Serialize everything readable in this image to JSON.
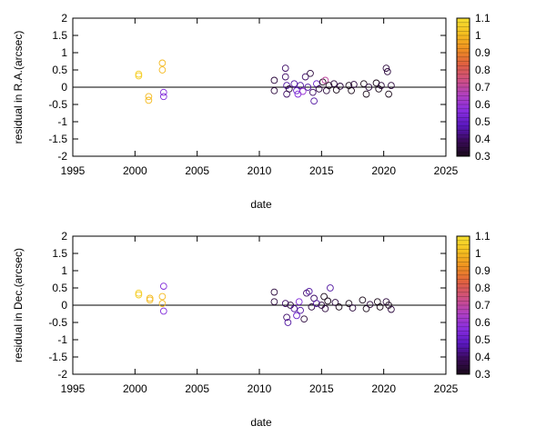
{
  "colorbar": {
    "min": 0.3,
    "max": 1.1,
    "ticks": [
      "1.1",
      "1",
      "0.9",
      "0.8",
      "0.7",
      "0.6",
      "0.5",
      "0.4",
      "0.3"
    ],
    "stops": [
      "#1a0a1a",
      "#3a0a5a",
      "#5a18c0",
      "#8a2ee0",
      "#b040c0",
      "#d05080",
      "#e06040",
      "#f09020",
      "#f5c020",
      "#f5e030"
    ]
  },
  "chart_data": [
    {
      "type": "scatter",
      "title": "",
      "xlabel": "date",
      "ylabel": "residual in R.A.(arcsec)",
      "xlim": [
        1995,
        2025
      ],
      "ylim": [
        -2,
        2
      ],
      "xticks": [
        "1995",
        "2000",
        "2005",
        "2010",
        "2015",
        "2020",
        "2025"
      ],
      "yticks": [
        "2",
        "1.5",
        "1",
        "0.5",
        "0",
        "-0.5",
        "-1",
        "-1.5",
        "-2"
      ],
      "zero_line": true,
      "points": [
        [
          2000.3,
          0.38,
          1.05
        ],
        [
          2000.3,
          0.33,
          1.05
        ],
        [
          2001.1,
          -0.27,
          1.0
        ],
        [
          2001.1,
          -0.38,
          1.0
        ],
        [
          2002.2,
          0.7,
          1.0
        ],
        [
          2002.2,
          0.5,
          1.0
        ],
        [
          2002.3,
          -0.15,
          0.55
        ],
        [
          2002.3,
          -0.27,
          0.55
        ],
        [
          2011.2,
          0.2,
          0.35
        ],
        [
          2011.2,
          -0.1,
          0.35
        ],
        [
          2012.1,
          0.55,
          0.4
        ],
        [
          2012.1,
          0.3,
          0.4
        ],
        [
          2012.2,
          0.05,
          0.45
        ],
        [
          2012.2,
          -0.2,
          0.4
        ],
        [
          2012.4,
          -0.05,
          0.35
        ],
        [
          2012.8,
          0.1,
          0.45
        ],
        [
          2013.0,
          -0.1,
          0.5
        ],
        [
          2013.1,
          -0.2,
          0.55
        ],
        [
          2013.3,
          0.05,
          0.45
        ],
        [
          2013.5,
          -0.12,
          0.6
        ],
        [
          2013.7,
          0.3,
          0.4
        ],
        [
          2013.9,
          0.0,
          0.45
        ],
        [
          2014.1,
          0.4,
          0.35
        ],
        [
          2014.3,
          -0.15,
          0.4
        ],
        [
          2014.4,
          -0.4,
          0.45
        ],
        [
          2014.6,
          0.1,
          0.5
        ],
        [
          2014.8,
          -0.05,
          0.35
        ],
        [
          2015.1,
          0.15,
          0.3
        ],
        [
          2015.3,
          0.2,
          0.7
        ],
        [
          2015.4,
          -0.1,
          0.35
        ],
        [
          2015.6,
          0.05,
          0.3
        ],
        [
          2016.0,
          0.1,
          0.35
        ],
        [
          2016.2,
          -0.08,
          0.3
        ],
        [
          2016.5,
          0.03,
          0.35
        ],
        [
          2017.2,
          0.05,
          0.3
        ],
        [
          2017.4,
          -0.1,
          0.3
        ],
        [
          2017.6,
          0.08,
          0.35
        ],
        [
          2018.4,
          0.1,
          0.3
        ],
        [
          2018.6,
          -0.2,
          0.3
        ],
        [
          2018.8,
          0.0,
          0.35
        ],
        [
          2019.4,
          0.12,
          0.3
        ],
        [
          2019.6,
          -0.05,
          0.3
        ],
        [
          2019.8,
          0.05,
          0.35
        ],
        [
          2020.2,
          0.55,
          0.35
        ],
        [
          2020.3,
          0.45,
          0.35
        ],
        [
          2020.4,
          -0.2,
          0.3
        ],
        [
          2020.6,
          0.05,
          0.35
        ]
      ]
    },
    {
      "type": "scatter",
      "title": "",
      "xlabel": "date",
      "ylabel": "residual in Dec.(arcsec)",
      "xlim": [
        1995,
        2025
      ],
      "ylim": [
        -2,
        2
      ],
      "xticks": [
        "1995",
        "2000",
        "2005",
        "2010",
        "2015",
        "2020",
        "2025"
      ],
      "yticks": [
        "2",
        "1.5",
        "1",
        "0.5",
        "0",
        "-0.5",
        "-1",
        "-1.5",
        "-2"
      ],
      "zero_line": true,
      "points": [
        [
          2000.3,
          0.35,
          1.05
        ],
        [
          2000.3,
          0.3,
          1.05
        ],
        [
          2001.2,
          0.2,
          1.0
        ],
        [
          2001.2,
          0.15,
          1.0
        ],
        [
          2002.2,
          0.25,
          1.0
        ],
        [
          2002.2,
          0.05,
          1.0
        ],
        [
          2002.3,
          0.55,
          0.55
        ],
        [
          2002.3,
          -0.17,
          0.55
        ],
        [
          2011.2,
          0.38,
          0.35
        ],
        [
          2011.2,
          0.1,
          0.35
        ],
        [
          2012.1,
          0.05,
          0.4
        ],
        [
          2012.2,
          -0.35,
          0.4
        ],
        [
          2012.3,
          -0.5,
          0.45
        ],
        [
          2012.5,
          0.0,
          0.35
        ],
        [
          2012.8,
          -0.1,
          0.45
        ],
        [
          2013.0,
          -0.3,
          0.5
        ],
        [
          2013.2,
          0.1,
          0.55
        ],
        [
          2013.3,
          -0.15,
          0.45
        ],
        [
          2013.6,
          -0.4,
          0.35
        ],
        [
          2013.8,
          0.35,
          0.4
        ],
        [
          2014.0,
          0.4,
          0.45
        ],
        [
          2014.2,
          -0.05,
          0.35
        ],
        [
          2014.4,
          0.2,
          0.4
        ],
        [
          2014.6,
          0.05,
          0.45
        ],
        [
          2015.0,
          0.0,
          0.35
        ],
        [
          2015.2,
          0.25,
          0.3
        ],
        [
          2015.3,
          -0.1,
          0.35
        ],
        [
          2015.5,
          0.12,
          0.3
        ],
        [
          2015.7,
          0.5,
          0.45
        ],
        [
          2016.1,
          0.08,
          0.35
        ],
        [
          2016.4,
          -0.05,
          0.3
        ],
        [
          2017.2,
          0.05,
          0.3
        ],
        [
          2017.5,
          -0.08,
          0.35
        ],
        [
          2018.3,
          0.15,
          0.3
        ],
        [
          2018.6,
          -0.1,
          0.3
        ],
        [
          2018.9,
          0.02,
          0.35
        ],
        [
          2019.5,
          0.1,
          0.3
        ],
        [
          2019.7,
          -0.05,
          0.3
        ],
        [
          2020.2,
          0.1,
          0.35
        ],
        [
          2020.4,
          0.0,
          0.3
        ],
        [
          2020.6,
          -0.12,
          0.35
        ]
      ]
    }
  ]
}
